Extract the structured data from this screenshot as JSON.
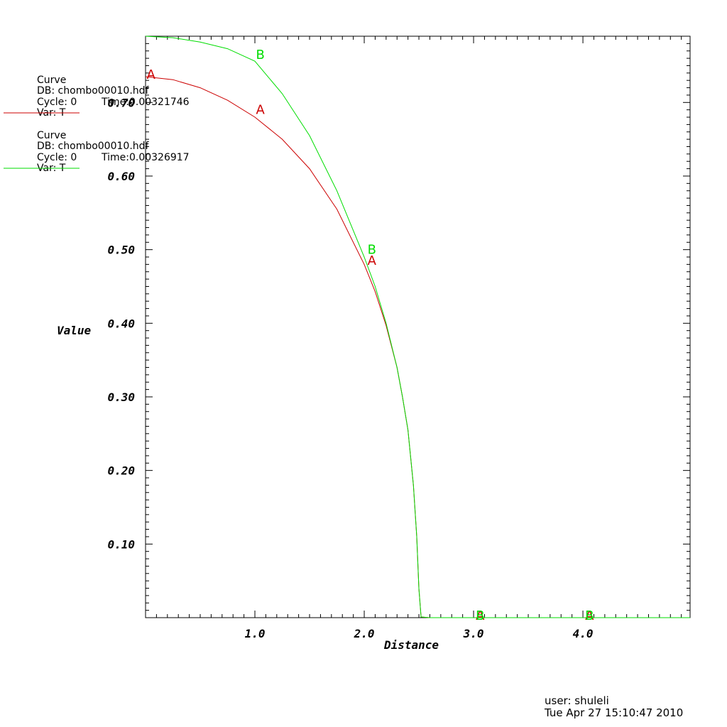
{
  "chart_data": {
    "type": "line",
    "xlabel": "Distance",
    "ylabel": "Value",
    "xlim": [
      0.0,
      4.98
    ],
    "ylim": [
      0.0,
      0.79
    ],
    "x_ticks": [
      1.0,
      2.0,
      3.0,
      4.0
    ],
    "x_tick_labels": [
      "1.0",
      "2.0",
      "3.0",
      "4.0"
    ],
    "y_ticks": [
      0.1,
      0.2,
      0.3,
      0.4,
      0.5,
      0.6,
      0.7
    ],
    "y_tick_labels": [
      "0.10",
      "0.20",
      "0.30",
      "0.40",
      "0.50",
      "0.60",
      "0.70"
    ],
    "grid": false,
    "series": [
      {
        "marker_label": "A",
        "color": "#cc0000",
        "legend": [
          "Curve",
          "DB: chombo00010.hdf",
          "Cycle: 0",
          "Time:0.00321746",
          "Var: T"
        ],
        "points": [
          [
            0.0,
            0.735
          ],
          [
            0.25,
            0.731
          ],
          [
            0.5,
            0.72
          ],
          [
            0.75,
            0.703
          ],
          [
            1.0,
            0.68
          ],
          [
            1.25,
            0.65
          ],
          [
            1.5,
            0.61
          ],
          [
            1.75,
            0.555
          ],
          [
            2.0,
            0.48
          ],
          [
            2.1,
            0.443
          ],
          [
            2.2,
            0.397
          ],
          [
            2.3,
            0.34
          ],
          [
            2.35,
            0.3
          ],
          [
            2.4,
            0.255
          ],
          [
            2.45,
            0.18
          ],
          [
            2.48,
            0.11
          ],
          [
            2.5,
            0.04
          ],
          [
            2.52,
            0.001
          ],
          [
            2.6,
            0.0
          ],
          [
            3.0,
            0.0
          ],
          [
            4.0,
            0.0
          ],
          [
            4.98,
            0.0
          ]
        ],
        "marker_points": [
          [
            0.05,
            0.738
          ],
          [
            1.05,
            0.69
          ],
          [
            2.07,
            0.485
          ],
          [
            3.06,
            0.003
          ],
          [
            4.06,
            0.003
          ]
        ]
      },
      {
        "marker_label": "B",
        "color": "#00dd00",
        "legend": [
          "Curve",
          "DB: chombo00010.hdf",
          "Cycle: 0",
          "Time:0.00326917",
          "Var: T"
        ],
        "points": [
          [
            0.0,
            0.79
          ],
          [
            0.25,
            0.788
          ],
          [
            0.5,
            0.782
          ],
          [
            0.75,
            0.773
          ],
          [
            1.0,
            0.756
          ],
          [
            1.25,
            0.712
          ],
          [
            1.5,
            0.655
          ],
          [
            1.75,
            0.58
          ],
          [
            2.0,
            0.49
          ],
          [
            2.1,
            0.45
          ],
          [
            2.2,
            0.4
          ],
          [
            2.3,
            0.34
          ],
          [
            2.35,
            0.3
          ],
          [
            2.4,
            0.255
          ],
          [
            2.45,
            0.18
          ],
          [
            2.48,
            0.11
          ],
          [
            2.5,
            0.04
          ],
          [
            2.52,
            0.001
          ],
          [
            2.6,
            0.0
          ],
          [
            3.0,
            0.0
          ],
          [
            4.0,
            0.0
          ],
          [
            4.98,
            0.0
          ]
        ],
        "marker_points": [
          [
            1.05,
            0.765
          ],
          [
            2.07,
            0.5
          ],
          [
            3.06,
            0.003
          ],
          [
            4.06,
            0.003
          ]
        ]
      }
    ]
  },
  "footer": {
    "user": "user: shuleli",
    "timestamp": "Tue Apr 27 15:10:47 2010"
  }
}
